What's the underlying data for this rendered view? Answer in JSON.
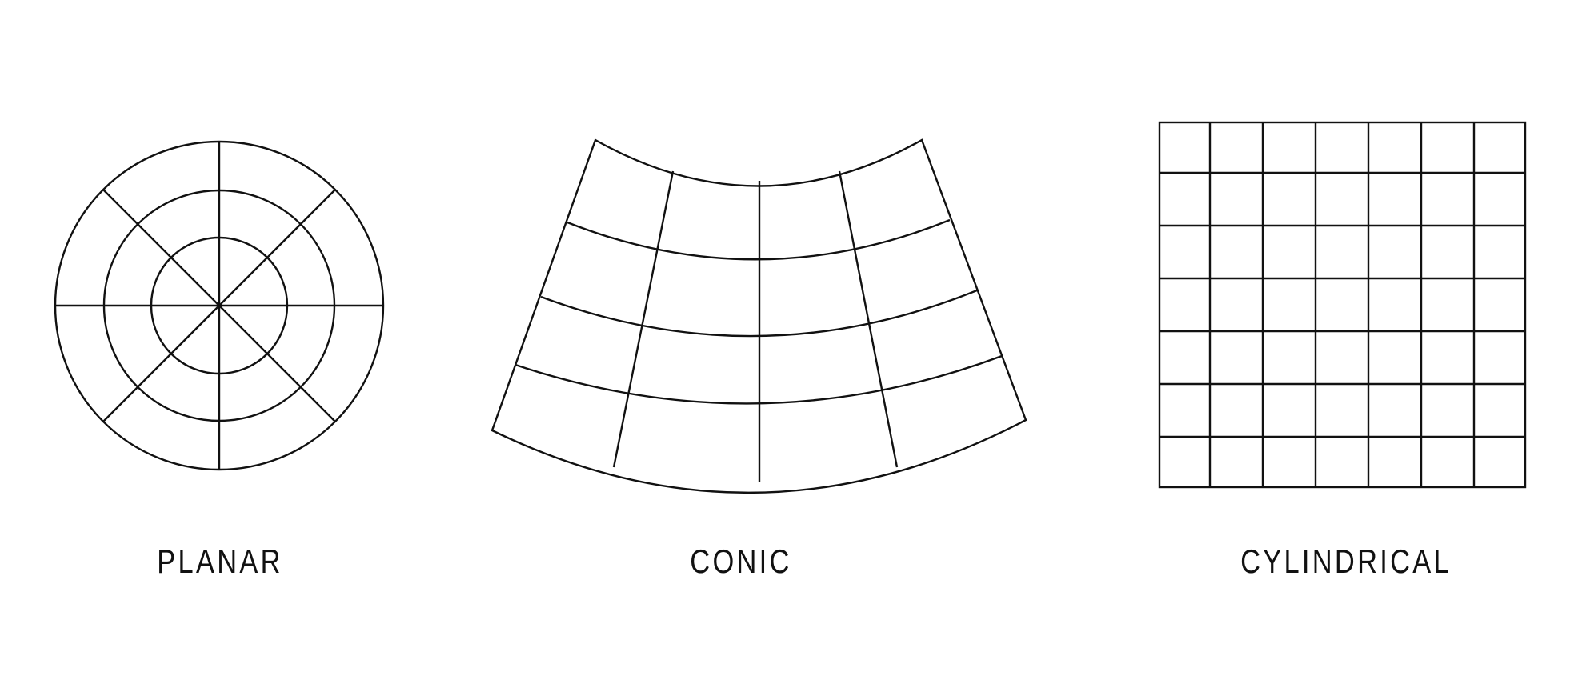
{
  "labels": {
    "planar": "PLANAR",
    "conic": "CONIC",
    "cylindrical": "CYLINDRICAL"
  },
  "line_color": "#111111",
  "background_color": "#ffffff"
}
